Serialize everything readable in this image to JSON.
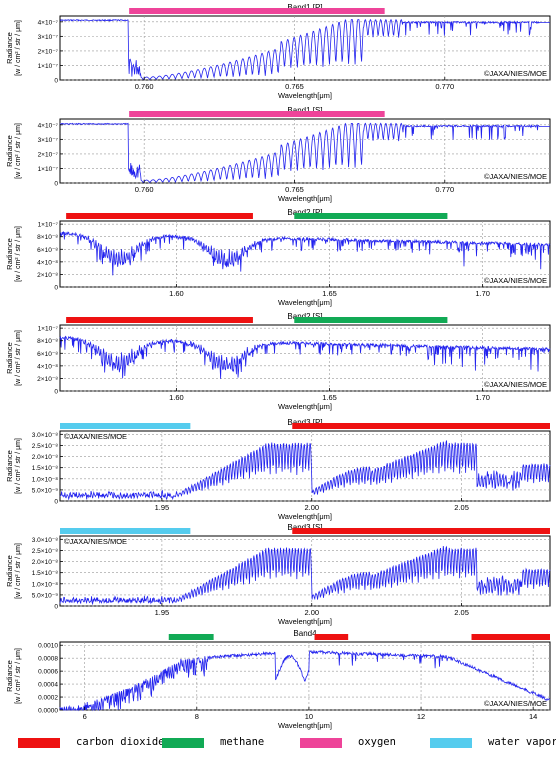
{
  "colors": {
    "carbon_dioxide": "#ee1111",
    "methane": "#11aa55",
    "oxygen": "#ee4499",
    "water_vapor": "#55ccee",
    "spectrum": "#2222ee"
  },
  "legend": [
    {
      "label": "carbon dioxide",
      "color_key": "carbon_dioxide"
    },
    {
      "label": "methane",
      "color_key": "methane"
    },
    {
      "label": "oxygen",
      "color_key": "oxygen"
    },
    {
      "label": "water vapor",
      "color_key": "water_vapor"
    }
  ],
  "copyright": "©JAXA/NIES/MOE",
  "ylabel": "Radiance [w / cm² / str / μm]",
  "ylabel_line1": "Radiance",
  "ylabel_line2": "[w / cm² / str / μm]",
  "xlabel_micron": "Wavelength[μm]",
  "chart_data": [
    {
      "type": "line",
      "title": "Band1 [P]",
      "xlabel": "Wavelength[μm]",
      "ylabel": "Radiance [w / cm² / str / μm]",
      "xlim": [
        0.7572,
        0.7735
      ],
      "ylim": [
        0,
        4.4e-07
      ],
      "xticks": [
        0.76,
        0.765,
        0.77
      ],
      "xtick_labels": [
        "0.760",
        "0.765",
        "0.770"
      ],
      "yticks": [
        0,
        1e-07,
        2e-07,
        3e-07,
        4e-07
      ],
      "ytick_labels": [
        "0",
        "1×10⁻⁷",
        "2×10⁻⁷",
        "3×10⁻⁷",
        "4×10⁻⁷"
      ],
      "grid": true,
      "copyright_position": "bottom-right",
      "absorption_bands": [
        {
          "gas": "oxygen",
          "x": [
            0.7595,
            0.768
          ]
        }
      ],
      "spectrum": {
        "baseline": 4.15e-07,
        "continuum_slope": 0,
        "profile": "o2a"
      }
    },
    {
      "type": "line",
      "title": "Band1 [S]",
      "xlabel": "Wavelength[μm]",
      "ylabel": "Radiance [w / cm² / str / μm]",
      "xlim": [
        0.7572,
        0.7735
      ],
      "ylim": [
        0,
        4.4e-07
      ],
      "xticks": [
        0.76,
        0.765,
        0.77
      ],
      "xtick_labels": [
        "0.760",
        "0.765",
        "0.770"
      ],
      "yticks": [
        0,
        1e-07,
        2e-07,
        3e-07,
        4e-07
      ],
      "ytick_labels": [
        "0",
        "1×10⁻⁷",
        "2×10⁻⁷",
        "3×10⁻⁷",
        "4×10⁻⁷"
      ],
      "grid": true,
      "copyright_position": "bottom-right",
      "absorption_bands": [
        {
          "gas": "oxygen",
          "x": [
            0.7595,
            0.768
          ]
        }
      ],
      "spectrum": {
        "baseline": 4.1e-07,
        "continuum_slope": 0,
        "profile": "o2a"
      }
    },
    {
      "type": "line",
      "title": "Band2 [P]",
      "xlabel": "Wavelength[μm]",
      "ylabel": "Radiance [w / cm² / str / μm]",
      "xlim": [
        1.562,
        1.722
      ],
      "ylim": [
        0,
        1.05e-07
      ],
      "xticks": [
        1.6,
        1.65,
        1.7
      ],
      "xtick_labels": [
        "1.60",
        "1.65",
        "1.70"
      ],
      "yticks": [
        0,
        2e-08,
        4e-08,
        6e-08,
        8e-08,
        1e-07
      ],
      "ytick_labels": [
        "0",
        "2×10⁻⁸",
        "4×10⁻⁸",
        "6×10⁻⁸",
        "8×10⁻⁸",
        "1×10⁻⁷"
      ],
      "grid": true,
      "copyright_position": "bottom-right",
      "absorption_bands": [
        {
          "gas": "carbon_dioxide",
          "x": [
            1.564,
            1.625
          ]
        },
        {
          "gas": "methane",
          "x": [
            1.6385,
            1.6885
          ]
        }
      ],
      "spectrum": {
        "baseline": 9.1e-08,
        "continuum_slope": -1.2e-07,
        "profile": "band2"
      }
    },
    {
      "type": "line",
      "title": "Band2 [S]",
      "xlabel": "Wavelength[μm]",
      "ylabel": "Radiance [w / cm² / str / μm]",
      "xlim": [
        1.562,
        1.722
      ],
      "ylim": [
        0,
        1.05e-07
      ],
      "xticks": [
        1.6,
        1.65,
        1.7
      ],
      "xtick_labels": [
        "1.60",
        "1.65",
        "1.70"
      ],
      "yticks": [
        0,
        2e-08,
        4e-08,
        6e-08,
        8e-08,
        1e-07
      ],
      "ytick_labels": [
        "0",
        "2×10⁻⁸",
        "4×10⁻⁸",
        "6×10⁻⁸",
        "8×10⁻⁸",
        "1×10⁻⁷"
      ],
      "grid": true,
      "copyright_position": "bottom-right",
      "absorption_bands": [
        {
          "gas": "carbon_dioxide",
          "x": [
            1.564,
            1.625
          ]
        },
        {
          "gas": "methane",
          "x": [
            1.6385,
            1.6885
          ]
        }
      ],
      "spectrum": {
        "baseline": 9e-08,
        "continuum_slope": -1.2e-07,
        "profile": "band2"
      }
    },
    {
      "type": "line",
      "title": "Band3 [P]",
      "xlabel": "Wavelength[μm]",
      "ylabel": "Radiance [w / cm² / str / μm]",
      "xlim": [
        1.916,
        2.0795
      ],
      "ylim": [
        0,
        3.15e-08
      ],
      "xticks": [
        1.95,
        2.0,
        2.05
      ],
      "xtick_labels": [
        "1.95",
        "2.00",
        "2.05"
      ],
      "yticks": [
        0,
        5e-09,
        1e-08,
        1.5e-08,
        2e-08,
        2.5e-08,
        3e-08
      ],
      "ytick_labels": [
        "0",
        "5.0×10⁻⁹",
        "1.0×10⁻⁸",
        "1.5×10⁻⁸",
        "2.0×10⁻⁸",
        "2.5×10⁻⁸",
        "3.0×10⁻⁸"
      ],
      "grid": true,
      "copyright_position": "top-left",
      "absorption_bands": [
        {
          "gas": "water_vapor",
          "x": [
            1.916,
            1.9595
          ]
        },
        {
          "gas": "carbon_dioxide",
          "x": [
            1.9935,
            2.0795
          ]
        }
      ],
      "spectrum": {
        "baseline": 2.7e-08,
        "continuum_slope": 0,
        "profile": "band3"
      }
    },
    {
      "type": "line",
      "title": "Band3 [S]",
      "xlabel": "Wavelength[μm]",
      "ylabel": "Radiance [w / cm² / str / μm]",
      "xlim": [
        1.916,
        2.0795
      ],
      "ylim": [
        0,
        3.15e-08
      ],
      "xticks": [
        1.95,
        2.0,
        2.05
      ],
      "xtick_labels": [
        "1.95",
        "2.00",
        "2.05"
      ],
      "yticks": [
        0,
        5e-09,
        1e-08,
        1.5e-08,
        2e-08,
        2.5e-08,
        3e-08
      ],
      "ytick_labels": [
        "0",
        "5.0×10⁻⁹",
        "1.0×10⁻⁸",
        "1.5×10⁻⁸",
        "2.0×10⁻⁸",
        "2.5×10⁻⁸",
        "3.0×10⁻⁸"
      ],
      "grid": true,
      "copyright_position": "top-left",
      "absorption_bands": [
        {
          "gas": "water_vapor",
          "x": [
            1.916,
            1.9595
          ]
        },
        {
          "gas": "carbon_dioxide",
          "x": [
            1.9935,
            2.0795
          ]
        }
      ],
      "spectrum": {
        "baseline": 2.7e-08,
        "continuum_slope": 0,
        "profile": "band3"
      }
    },
    {
      "type": "line",
      "title": "Band4",
      "xlabel": "Wavelength[μm]",
      "ylabel": "Radiance [w / cm² / str / μm]",
      "xlim": [
        5.56,
        14.3
      ],
      "ylim": [
        0,
        0.00105
      ],
      "xticks": [
        6,
        8,
        10,
        12,
        14
      ],
      "xtick_labels": [
        "6",
        "8",
        "10",
        "12",
        "14"
      ],
      "yticks": [
        0,
        0.0002,
        0.0004,
        0.0006,
        0.0008,
        0.001
      ],
      "ytick_labels": [
        "0.0000",
        "0.0002",
        "0.0004",
        "0.0006",
        "0.0008",
        "0.0010"
      ],
      "grid": true,
      "copyright_position": "bottom-right",
      "absorption_bands": [
        {
          "gas": "methane",
          "x": [
            7.5,
            8.3
          ]
        },
        {
          "gas": "carbon_dioxide",
          "x": [
            10.1,
            10.7
          ]
        },
        {
          "gas": "carbon_dioxide",
          "x": [
            12.9,
            14.3
          ]
        }
      ],
      "spectrum": {
        "baseline": 0.00095,
        "continuum_slope": 0,
        "profile": "band4"
      }
    }
  ]
}
